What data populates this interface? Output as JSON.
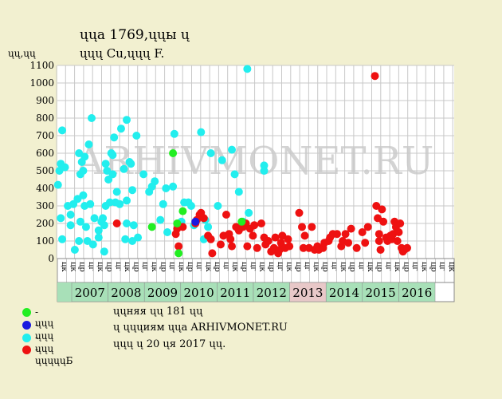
{
  "title_line1": "ųųа 1769,ųųы ų",
  "title_line2": "ųųų Cu,ųųų F.",
  "y_unit": "ųų,ųų",
  "watermark": "ARHIVMONET.RU",
  "legend": [
    {
      "label": "- ųųų",
      "color": "#22ee22"
    },
    {
      "label": "- ųųų",
      "color": "#1a1ae0"
    },
    {
      "label": "- ųųų",
      "color": "#22eeee"
    },
    {
      "label": "- ųųųųųБ",
      "color": "#ee1111"
    }
  ],
  "notes": [
    "ųųняя ųų 181 ųų",
    "ų ųųųиям ųųа ARHIVMONET.RU",
    "ųųų ų 20 ųя 2017 ųų."
  ],
  "colors": {
    "plot_bg": "#ffffff",
    "grid": "#c8c8c8",
    "year_band": "#a8e0b8",
    "year_band_alt": "#e8c8c8"
  },
  "chart_data": {
    "type": "scatter",
    "ylim": [
      0,
      1100
    ],
    "yticks": [
      0,
      100,
      200,
      300,
      400,
      500,
      600,
      700,
      800,
      900,
      1000,
      1100
    ],
    "quarter_labels": [
      "цк",
      "цк",
      "цр",
      "цг",
      "цк",
      "цр",
      "цг",
      "цк",
      "цр",
      "цг",
      "цк",
      "цр",
      "цг",
      "цк",
      "цр",
      "цг",
      "цк",
      "цр",
      "цг",
      "цк",
      "цр",
      "цг",
      "цк",
      "цр",
      "цг",
      "цк",
      "цр",
      "цг",
      "цк",
      "цр",
      "цг",
      "цк",
      "цр",
      "цг",
      "цк",
      "цр",
      "цг",
      "цк",
      "цр",
      "цг",
      "цк",
      "цр",
      "цг",
      "цк"
    ],
    "years": [
      "2007",
      "2008",
      "2009",
      "2010",
      "2011",
      "2012",
      "2013",
      "2014",
      "2015",
      "2016"
    ],
    "series": [
      {
        "color": "#22eeee",
        "points": [
          [
            0.1,
            420
          ],
          [
            0.2,
            500
          ],
          [
            0.3,
            540
          ],
          [
            0.3,
            230
          ],
          [
            0.4,
            730
          ],
          [
            0.4,
            110
          ],
          [
            0.6,
            520
          ],
          [
            0.8,
            300
          ],
          [
            1,
            250
          ],
          [
            1,
            190
          ],
          [
            1.2,
            310
          ],
          [
            1.3,
            50
          ],
          [
            1.5,
            340
          ],
          [
            1.6,
            600
          ],
          [
            1.6,
            100
          ],
          [
            1.7,
            480
          ],
          [
            1.7,
            210
          ],
          [
            1.8,
            550
          ],
          [
            1.9,
            360
          ],
          [
            1.9,
            500
          ],
          [
            2,
            580
          ],
          [
            2,
            300
          ],
          [
            2.1,
            180
          ],
          [
            2.2,
            100
          ],
          [
            2.3,
            650
          ],
          [
            2.4,
            310
          ],
          [
            2.5,
            800
          ],
          [
            2.6,
            80
          ],
          [
            2.7,
            230
          ],
          [
            3,
            160
          ],
          [
            3,
            120
          ],
          [
            3.2,
            210
          ],
          [
            3.3,
            230
          ],
          [
            3.4,
            190
          ],
          [
            3.4,
            40
          ],
          [
            3.5,
            300
          ],
          [
            3.5,
            540
          ],
          [
            3.6,
            500
          ],
          [
            3.7,
            450
          ],
          [
            3.8,
            320
          ],
          [
            3.9,
            600
          ],
          [
            4,
            480
          ],
          [
            4,
            590
          ],
          [
            4.1,
            690
          ],
          [
            4.2,
            320
          ],
          [
            4.3,
            380
          ],
          [
            4.5,
            310
          ],
          [
            4.6,
            740
          ],
          [
            4.8,
            510
          ],
          [
            4.9,
            110
          ],
          [
            5,
            790
          ],
          [
            5,
            330
          ],
          [
            5,
            200
          ],
          [
            5.2,
            550
          ],
          [
            5.3,
            540
          ],
          [
            5.4,
            390
          ],
          [
            5.4,
            100
          ],
          [
            5.5,
            190
          ],
          [
            5.7,
            700
          ],
          [
            5.8,
            120
          ],
          [
            6.2,
            480
          ],
          [
            6.6,
            380
          ],
          [
            6.8,
            410
          ],
          [
            7,
            440
          ],
          [
            7.4,
            220
          ],
          [
            7.6,
            310
          ],
          [
            7.8,
            400
          ],
          [
            7.9,
            150
          ],
          [
            8.3,
            410
          ],
          [
            8.4,
            710
          ],
          [
            8.9,
            210
          ],
          [
            9.1,
            320
          ],
          [
            9.4,
            320
          ],
          [
            9.6,
            300
          ],
          [
            9.8,
            190
          ],
          [
            10.3,
            720
          ],
          [
            10.5,
            110
          ],
          [
            10.6,
            220
          ],
          [
            10.8,
            180
          ],
          [
            11,
            600
          ],
          [
            11.5,
            300
          ],
          [
            11.8,
            560
          ],
          [
            12.5,
            620
          ],
          [
            12.7,
            480
          ],
          [
            13,
            380
          ],
          [
            13.3,
            210
          ],
          [
            13.6,
            1080
          ],
          [
            13.7,
            260
          ],
          [
            14.8,
            500
          ],
          [
            14.8,
            530
          ]
        ]
      },
      {
        "color": "#ee1111",
        "points": [
          [
            4.3,
            200
          ],
          [
            8.5,
            140
          ],
          [
            8.6,
            170
          ],
          [
            8.7,
            70
          ],
          [
            9,
            180
          ],
          [
            9.9,
            200
          ],
          [
            10,
            220
          ],
          [
            10.2,
            250
          ],
          [
            10.3,
            260
          ],
          [
            10.5,
            230
          ],
          [
            10.8,
            130
          ],
          [
            11,
            110
          ],
          [
            11.1,
            30
          ],
          [
            11.7,
            80
          ],
          [
            11.9,
            130
          ],
          [
            12.1,
            250
          ],
          [
            12.3,
            140
          ],
          [
            12.4,
            110
          ],
          [
            12.5,
            70
          ],
          [
            12.8,
            180
          ],
          [
            13,
            160
          ],
          [
            13.3,
            180
          ],
          [
            13.5,
            200
          ],
          [
            13.6,
            70
          ],
          [
            13.8,
            170
          ],
          [
            14,
            130
          ],
          [
            14.1,
            190
          ],
          [
            14.3,
            60
          ],
          [
            14.6,
            200
          ],
          [
            14.8,
            120
          ],
          [
            14.9,
            80
          ],
          [
            15.1,
            100
          ],
          [
            15.3,
            40
          ],
          [
            15.5,
            60
          ],
          [
            15.6,
            120
          ],
          [
            15.8,
            30
          ],
          [
            15.9,
            50
          ],
          [
            16,
            90
          ],
          [
            16.1,
            130
          ],
          [
            16.3,
            60
          ],
          [
            16.5,
            110
          ],
          [
            16.6,
            70
          ],
          [
            17.3,
            260
          ],
          [
            17.5,
            180
          ],
          [
            17.6,
            60
          ],
          [
            17.7,
            130
          ],
          [
            18,
            60
          ],
          [
            18.2,
            180
          ],
          [
            18.4,
            50
          ],
          [
            18.6,
            70
          ],
          [
            18.7,
            50
          ],
          [
            19,
            60
          ],
          [
            19.1,
            90
          ],
          [
            19.4,
            100
          ],
          [
            19.5,
            120
          ],
          [
            19.7,
            140
          ],
          [
            20,
            140
          ],
          [
            20.3,
            70
          ],
          [
            20.4,
            100
          ],
          [
            20.6,
            140
          ],
          [
            20.8,
            90
          ],
          [
            21,
            170
          ],
          [
            21.4,
            60
          ],
          [
            21.8,
            150
          ],
          [
            22,
            90
          ],
          [
            22.2,
            180
          ],
          [
            22.7,
            1040
          ],
          [
            22.8,
            300
          ],
          [
            22.9,
            230
          ],
          [
            23,
            100
          ],
          [
            23,
            140
          ],
          [
            23.1,
            50
          ],
          [
            23.2,
            280
          ],
          [
            23.3,
            210
          ],
          [
            23.5,
            120
          ],
          [
            23.6,
            100
          ],
          [
            23.8,
            130
          ],
          [
            23.9,
            110
          ],
          [
            24,
            140
          ],
          [
            24.1,
            210
          ],
          [
            24.2,
            180
          ],
          [
            24.3,
            100
          ],
          [
            24.4,
            150
          ],
          [
            24.5,
            200
          ],
          [
            24.6,
            60
          ],
          [
            24.7,
            40
          ],
          [
            24.8,
            50
          ],
          [
            25,
            60
          ]
        ]
      },
      {
        "color": "#22ee22",
        "points": [
          [
            6.8,
            180
          ],
          [
            8.3,
            600
          ],
          [
            8.6,
            200
          ],
          [
            8.7,
            30
          ],
          [
            9,
            270
          ],
          [
            13.2,
            210
          ]
        ]
      },
      {
        "color": "#1a1ae0",
        "points": [
          [
            9.9,
            210
          ]
        ]
      }
    ]
  }
}
